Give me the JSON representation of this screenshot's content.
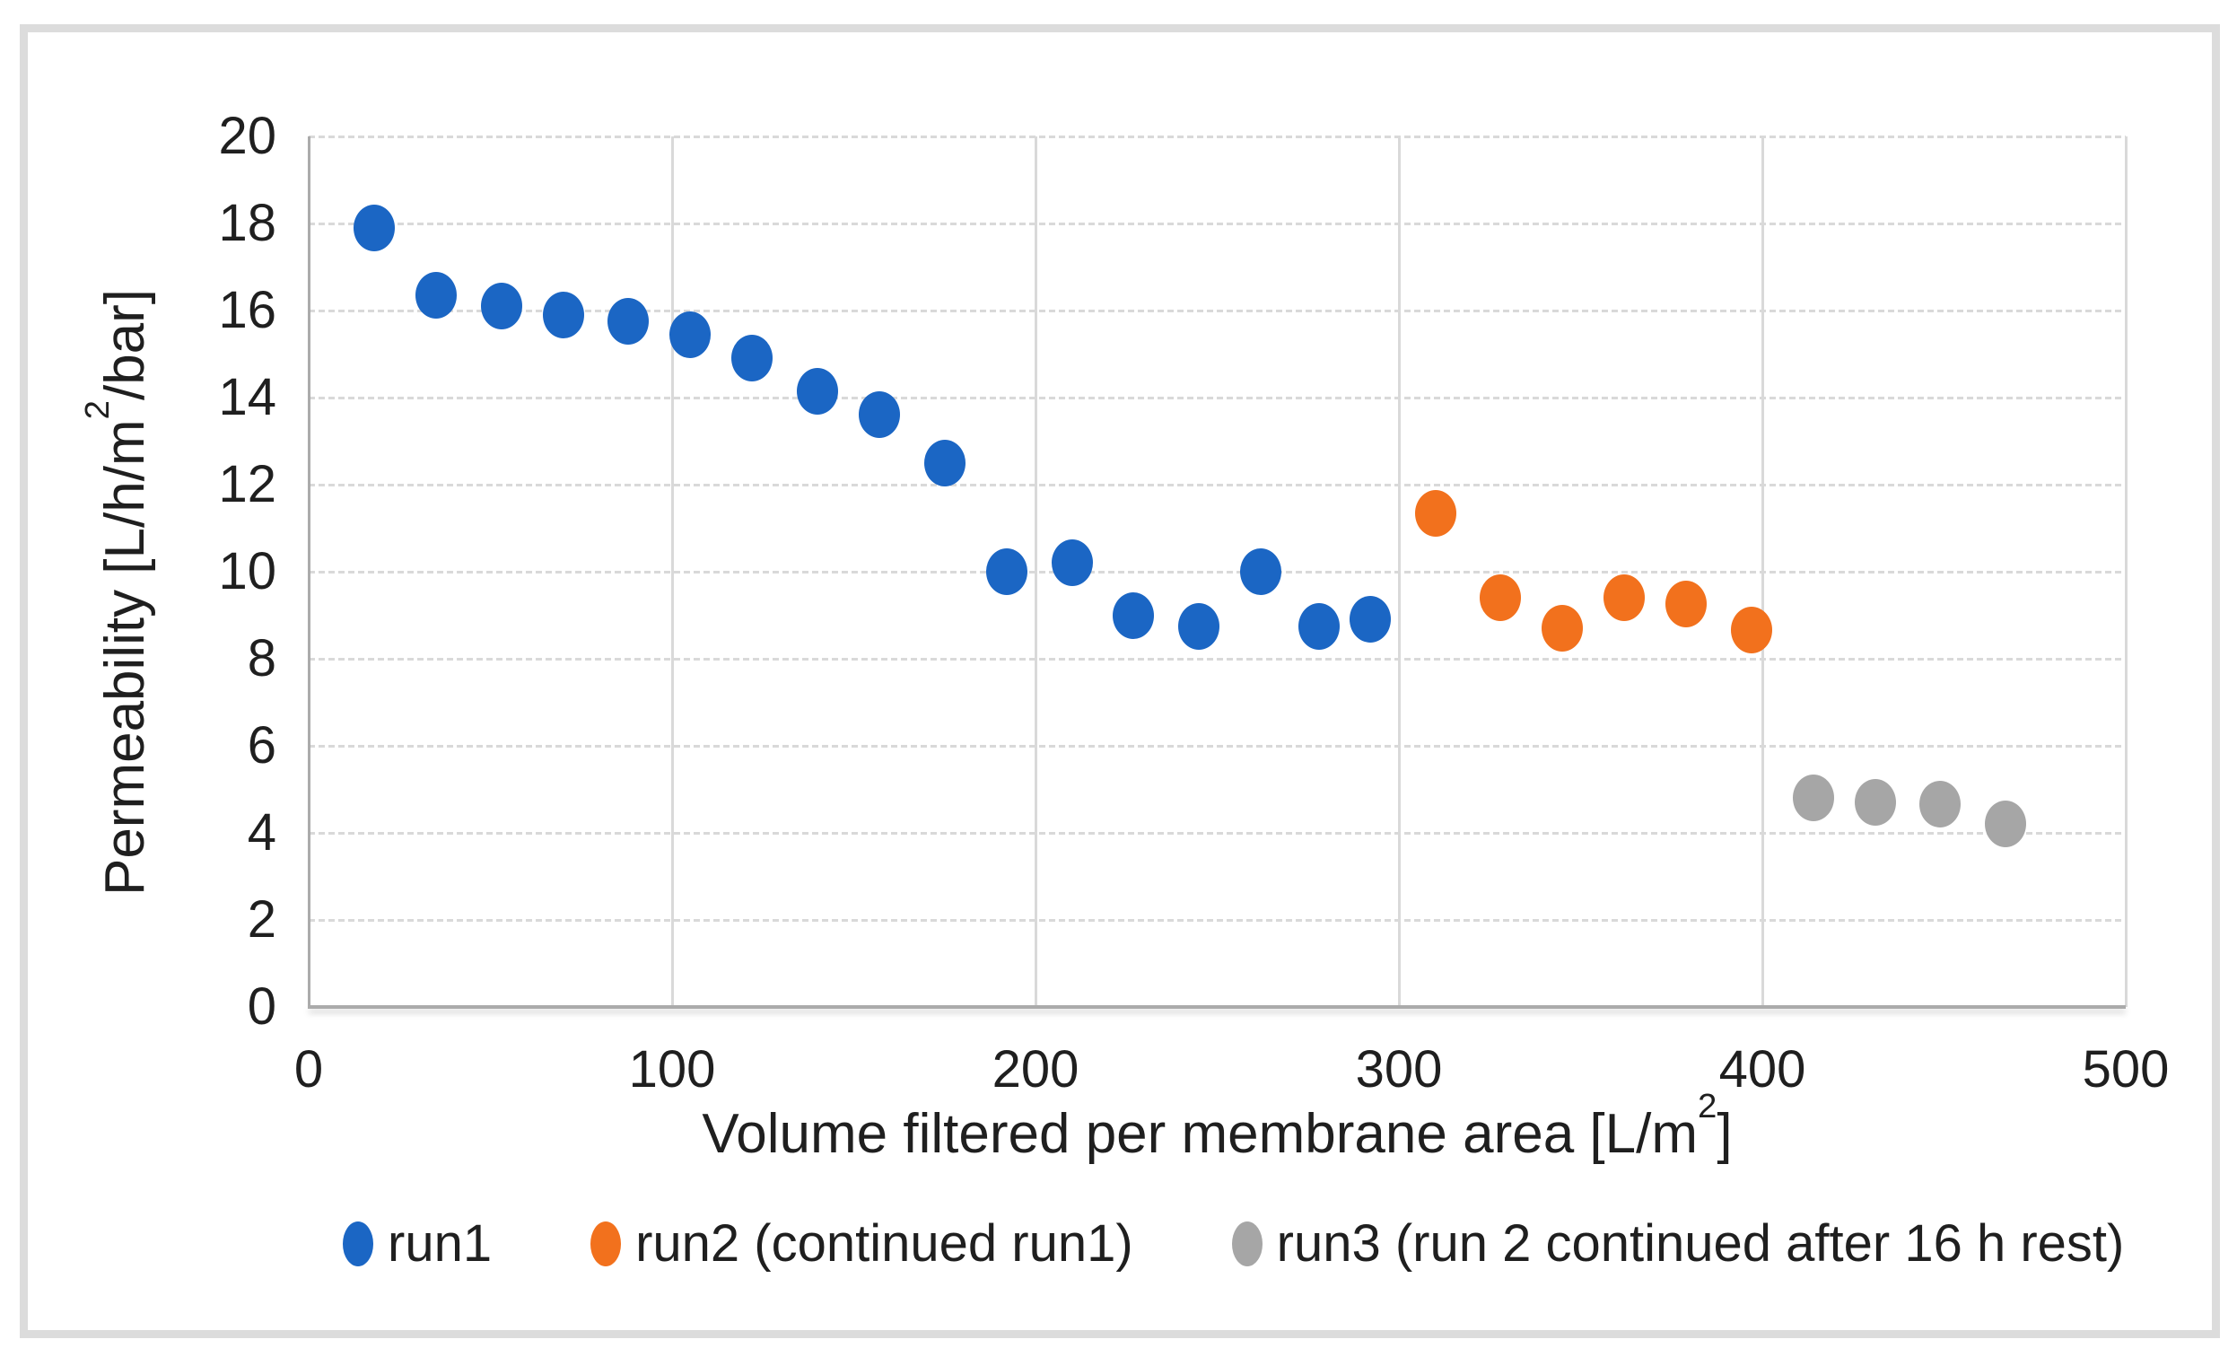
{
  "chart_data": {
    "type": "scatter",
    "title": "",
    "xlabel": "Volume filtered per membrane area [L/m²]",
    "ylabel": "Permeability [L/h/m²/bar]",
    "xlim": [
      0,
      500
    ],
    "ylim": [
      0,
      20
    ],
    "x_ticks": [
      "0",
      "100",
      "200",
      "300",
      "400",
      "500"
    ],
    "y_ticks": [
      "0",
      "2",
      "4",
      "6",
      "8",
      "10",
      "12",
      "14",
      "16",
      "18",
      "20"
    ],
    "grid": true,
    "gridline_color": "#d9d9d9",
    "axis_color": "#ababab",
    "legend_position": "bottom",
    "series": [
      {
        "name": "run1",
        "color": "#1b66c4",
        "points": [
          [
            18,
            17.9
          ],
          [
            35,
            16.35
          ],
          [
            53,
            16.1
          ],
          [
            70,
            15.9
          ],
          [
            88,
            15.75
          ],
          [
            105,
            15.45
          ],
          [
            122,
            14.9
          ],
          [
            140,
            14.15
          ],
          [
            157,
            13.6
          ],
          [
            175,
            12.5
          ],
          [
            192,
            10.0
          ],
          [
            210,
            10.2
          ],
          [
            227,
            9.0
          ],
          [
            245,
            8.75
          ],
          [
            262,
            10.0
          ],
          [
            278,
            8.75
          ],
          [
            292,
            8.9
          ]
        ]
      },
      {
        "name": "run2 (continued run1)",
        "color": "#f2711d",
        "points": [
          [
            310,
            11.35
          ],
          [
            328,
            9.4
          ],
          [
            345,
            8.7
          ],
          [
            362,
            9.4
          ],
          [
            379,
            9.25
          ],
          [
            397,
            8.65
          ]
        ]
      },
      {
        "name": "run3 (run 2 continued after 16 h rest)",
        "color": "#a6a6a6",
        "points": [
          [
            414,
            4.8
          ],
          [
            431,
            4.7
          ],
          [
            449,
            4.65
          ],
          [
            467,
            4.2
          ]
        ]
      }
    ]
  },
  "frame_color": "#dcdcdc",
  "background_color": "#ffffff",
  "text_color": "#1f1f1f"
}
